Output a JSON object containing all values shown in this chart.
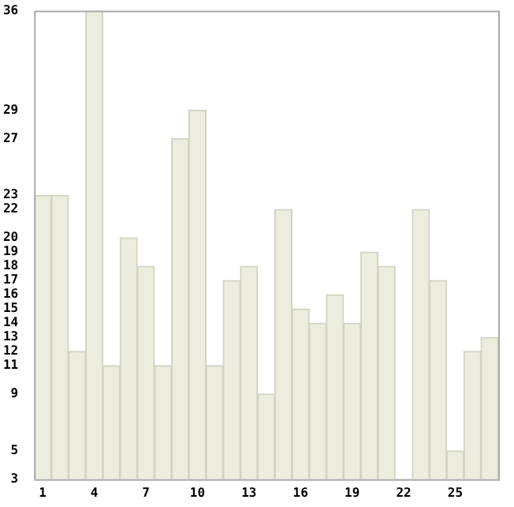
{
  "chart_data": {
    "type": "bar",
    "categories": [
      "1",
      null,
      null,
      "4",
      null,
      null,
      "7",
      null,
      null,
      "10",
      null,
      null,
      "13",
      null,
      null,
      "16",
      null,
      null,
      "19",
      null,
      null,
      "22",
      null,
      null,
      "25",
      null,
      null
    ],
    "values": [
      23,
      23,
      12,
      36,
      11,
      20,
      18,
      11,
      27,
      29,
      11,
      17,
      18,
      9,
      22,
      15,
      14,
      16,
      14,
      19,
      18,
      3,
      22,
      17,
      5,
      12,
      13
    ],
    "color": "#ededdf",
    "ylim": [
      3,
      36
    ],
    "yticks": [
      3,
      5,
      9,
      11,
      12,
      13,
      14,
      15,
      16,
      17,
      18,
      19,
      20,
      22,
      23,
      27,
      29,
      36
    ],
    "grid": false,
    "legend": false
  }
}
